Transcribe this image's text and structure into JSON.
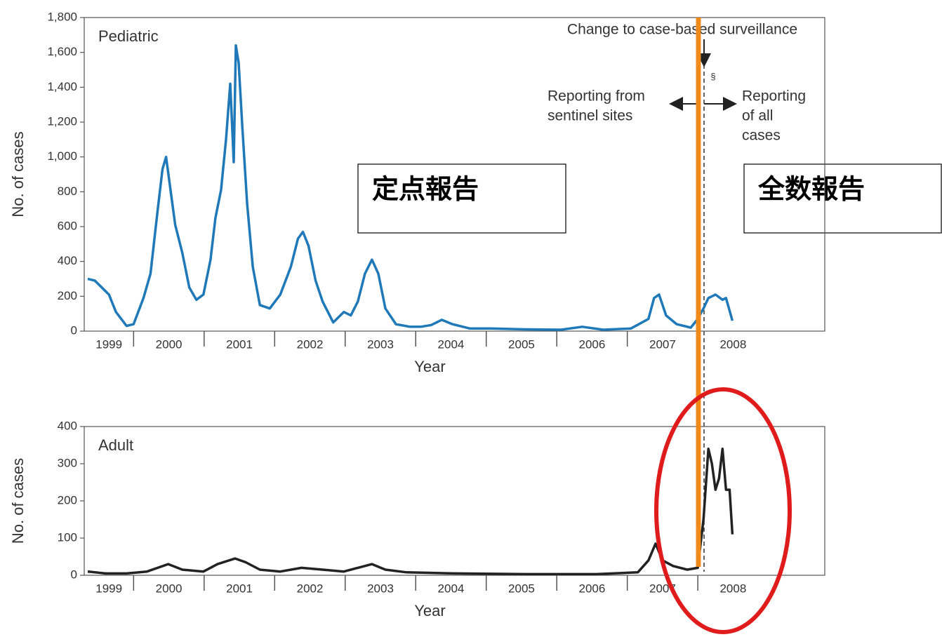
{
  "chart_data": [
    {
      "type": "line",
      "panel_label": "Pediatric",
      "xlabel": "Year",
      "ylabel": "No. of cases",
      "xlim": [
        1999.3,
        2009.8
      ],
      "xticks": [
        2000,
        2001,
        2002,
        2003,
        2004,
        2005,
        2006,
        2007,
        2008
      ],
      "year_labels": [
        "1999",
        "2000",
        "2001",
        "2002",
        "2003",
        "2004",
        "2005",
        "2006",
        "2007",
        "2008"
      ],
      "ylim": [
        0,
        1800
      ],
      "yticks": [
        0,
        200,
        400,
        600,
        800,
        {
          "value": 1000,
          "label": "1,000"
        },
        {
          "value": 1200,
          "label": "1,200"
        },
        {
          "value": 1400,
          "label": "1,400"
        },
        {
          "value": 1600,
          "label": "1,600"
        },
        {
          "value": 1800,
          "label": "1,800"
        }
      ],
      "series": [
        {
          "color": "#1f78b8",
          "x": [
            1999.35,
            1999.45,
            1999.55,
            1999.65,
            1999.75,
            1999.9,
            2000.0,
            2000.14,
            2000.24,
            2000.34,
            2000.41,
            2000.46,
            2000.51,
            2000.59,
            2000.69,
            2000.79,
            2000.89,
            2000.99,
            2001.09,
            2001.16,
            2001.24,
            2001.31,
            2001.37,
            2001.42,
            2001.45,
            2001.49,
            2001.54,
            2001.61,
            2001.69,
            2001.79,
            2001.93,
            2002.08,
            2002.23,
            2002.33,
            2002.4,
            2002.48,
            2002.58,
            2002.68,
            2002.83,
            2002.98,
            2003.08,
            2003.18,
            2003.28,
            2003.38,
            2003.47,
            2003.57,
            2003.72,
            2003.92,
            2004.07,
            2004.22,
            2004.37,
            2004.52,
            2004.77,
            2005.07,
            2005.56,
            2006.06,
            2006.36,
            2006.66,
            2007.05,
            2007.3,
            2007.38,
            2007.45,
            2007.55,
            2007.7,
            2007.9,
            2008.0,
            2008.08,
            2008.15,
            2008.25,
            2008.35,
            2008.4,
            2008.49
          ],
          "values": [
            300,
            290,
            250,
            210,
            110,
            30,
            40,
            190,
            330,
            690,
            930,
            1000,
            850,
            610,
            450,
            250,
            180,
            210,
            410,
            650,
            810,
            1100,
            1420,
            970,
            1640,
            1540,
            1180,
            730,
            370,
            150,
            130,
            210,
            370,
            530,
            570,
            490,
            290,
            170,
            50,
            110,
            90,
            170,
            330,
            410,
            330,
            130,
            40,
            25,
            25,
            35,
            65,
            40,
            15,
            15,
            10,
            8,
            25,
            8,
            15,
            70,
            190,
            210,
            90,
            40,
            20,
            70,
            130,
            190,
            210,
            180,
            190,
            60
          ]
        }
      ]
    },
    {
      "type": "line",
      "panel_label": "Adult",
      "xlabel": "Year",
      "ylabel": "No. of cases",
      "xlim": [
        1999.3,
        2009.8
      ],
      "xticks": [
        2000,
        2001,
        2002,
        2003,
        2004,
        2005,
        2006,
        2007,
        2008
      ],
      "year_labels": [
        "1999",
        "2000",
        "2001",
        "2002",
        "2003",
        "2004",
        "2005",
        "2006",
        "2007",
        "2008"
      ],
      "ylim": [
        0,
        400
      ],
      "yticks": [
        0,
        100,
        200,
        300,
        400
      ],
      "series": [
        {
          "color": "#222222",
          "x": [
            1999.35,
            1999.6,
            1999.9,
            2000.19,
            2000.49,
            2000.69,
            2000.99,
            2001.19,
            2001.44,
            2001.59,
            2001.79,
            2002.08,
            2002.38,
            2002.68,
            2002.98,
            2003.18,
            2003.38,
            2003.57,
            2003.87,
            2004.57,
            2005.56,
            2006.56,
            2007.15,
            2007.3,
            2007.4,
            2007.5,
            2007.65,
            2007.85,
            2008.0,
            2008.08,
            2008.15,
            2008.2,
            2008.25,
            2008.3,
            2008.35,
            2008.4,
            2008.45,
            2008.49
          ],
          "values": [
            10,
            5,
            5,
            10,
            30,
            15,
            10,
            30,
            45,
            35,
            15,
            10,
            20,
            15,
            10,
            20,
            30,
            15,
            8,
            5,
            3,
            3,
            8,
            40,
            85,
            40,
            25,
            15,
            20,
            150,
            340,
            300,
            230,
            260,
            340,
            230,
            230,
            110
          ]
        }
      ]
    }
  ],
  "annotations": {
    "change": "Change to case-based surveillance",
    "section": "§",
    "before": [
      "Reporting from",
      "sentinel sites"
    ],
    "after": [
      "Reporting",
      "of all",
      "cases"
    ],
    "box_before": "定点報告",
    "box_after": "全数報告"
  }
}
